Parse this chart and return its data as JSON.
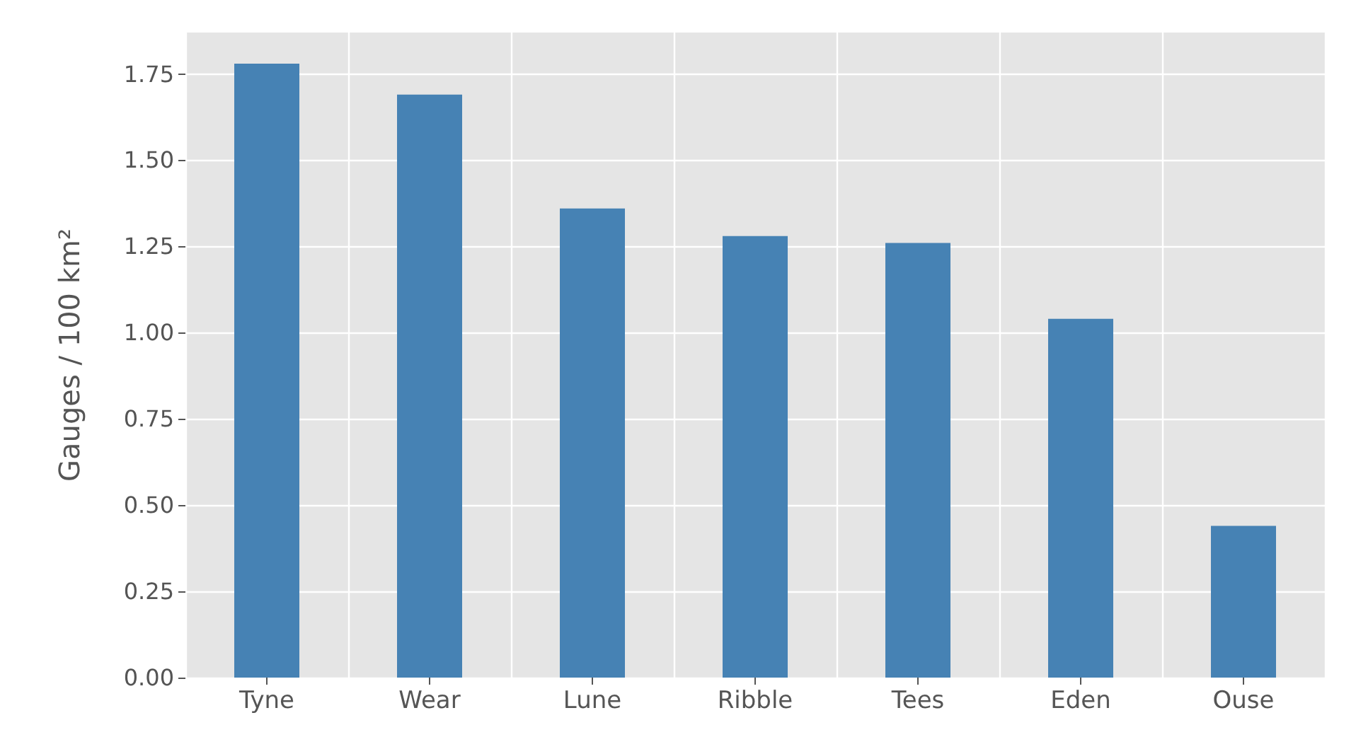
{
  "chart_data": {
    "type": "bar",
    "ylabel": "Gauges / 100 km²",
    "categories": [
      "Tyne",
      "Wear",
      "Lune",
      "Ribble",
      "Tees",
      "Eden",
      "Ouse"
    ],
    "values": [
      1.78,
      1.69,
      1.36,
      1.28,
      1.26,
      1.04,
      0.44
    ],
    "color": "#4682b4",
    "ylim": [
      0,
      1.87
    ],
    "yticks": [
      {
        "value": 0,
        "label": "0.00"
      },
      {
        "value": 0.25,
        "label": "0.25"
      },
      {
        "value": 0.5,
        "label": "0.50"
      },
      {
        "value": 0.75,
        "label": "0.75"
      },
      {
        "value": 1,
        "label": "1.00"
      },
      {
        "value": 1.25,
        "label": "1.25"
      },
      {
        "value": 1.5,
        "label": "1.50"
      },
      {
        "value": 1.75,
        "label": "1.75"
      }
    ],
    "grid": true
  }
}
